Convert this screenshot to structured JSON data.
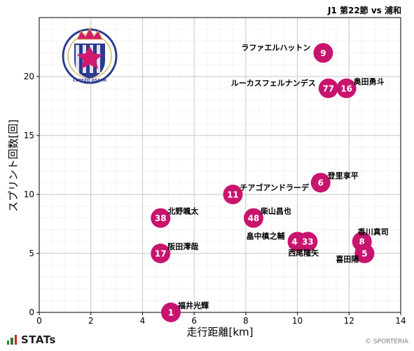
{
  "header": {
    "title": "J1 第22節 vs 浦和"
  },
  "footer": {
    "logo_text": "STATs",
    "watermark": "© SPORTERIA"
  },
  "colors": {
    "marker": "#c8146e",
    "marker_text": "#ffffff",
    "grid": "#d0d0d0",
    "axis": "#000000",
    "crest_pink": "#d2196f",
    "crest_navy": "#2b3a8f",
    "crest_gold": "#c9a74a",
    "stats_green": "#2e7d32",
    "stats_red": "#c62828"
  },
  "crest": {
    "ring_text": "CEREZO OSAKA"
  },
  "chart_data": {
    "type": "scatter",
    "title": "J1 第22節 vs 浦和",
    "xlabel": "走行距離[km]",
    "ylabel": "スプリント回数[回]",
    "xlim": [
      0,
      14
    ],
    "ylim": [
      0,
      25
    ],
    "x_ticks": [
      0,
      2,
      4,
      6,
      8,
      10,
      12,
      14
    ],
    "y_ticks": [
      0,
      5,
      10,
      15,
      20
    ],
    "grid": true,
    "points": [
      {
        "number": "9",
        "name": "ラファエルハットン",
        "x": 11.0,
        "y": 22,
        "label_side": "left"
      },
      {
        "number": "77",
        "name": "ルーカスフェルナンデス",
        "x": 11.2,
        "y": 19,
        "label_side": "left"
      },
      {
        "number": "16",
        "name": "奥田勇斗",
        "x": 11.9,
        "y": 19,
        "label_side": "right"
      },
      {
        "number": "6",
        "name": "登里享平",
        "x": 10.9,
        "y": 11,
        "label_side": "right"
      },
      {
        "number": "11",
        "name": "チアゴアンドラーデ",
        "x": 7.5,
        "y": 10,
        "label_side": "right"
      },
      {
        "number": "38",
        "name": "北野颯太",
        "x": 4.7,
        "y": 8,
        "label_side": "right"
      },
      {
        "number": "48",
        "name": "柴山昌也",
        "x": 8.3,
        "y": 8,
        "label_side": "right"
      },
      {
        "number": "44",
        "name": "畠中槙之輔",
        "x": 10.0,
        "y": 6,
        "label_side": "left"
      },
      {
        "number": "33",
        "name": "西尾隆矢",
        "x": 10.4,
        "y": 6,
        "label_side": "below-right"
      },
      {
        "number": "8",
        "name": "香川真司",
        "x": 12.5,
        "y": 6,
        "label_side": "above-right"
      },
      {
        "number": "5",
        "name": "喜田陽",
        "x": 12.6,
        "y": 5,
        "label_side": "below-left"
      },
      {
        "number": "17",
        "name": "阪田澪哉",
        "x": 4.7,
        "y": 5,
        "label_side": "right"
      },
      {
        "number": "1",
        "name": "福井光輝",
        "x": 5.1,
        "y": 0,
        "label_side": "right"
      }
    ]
  }
}
